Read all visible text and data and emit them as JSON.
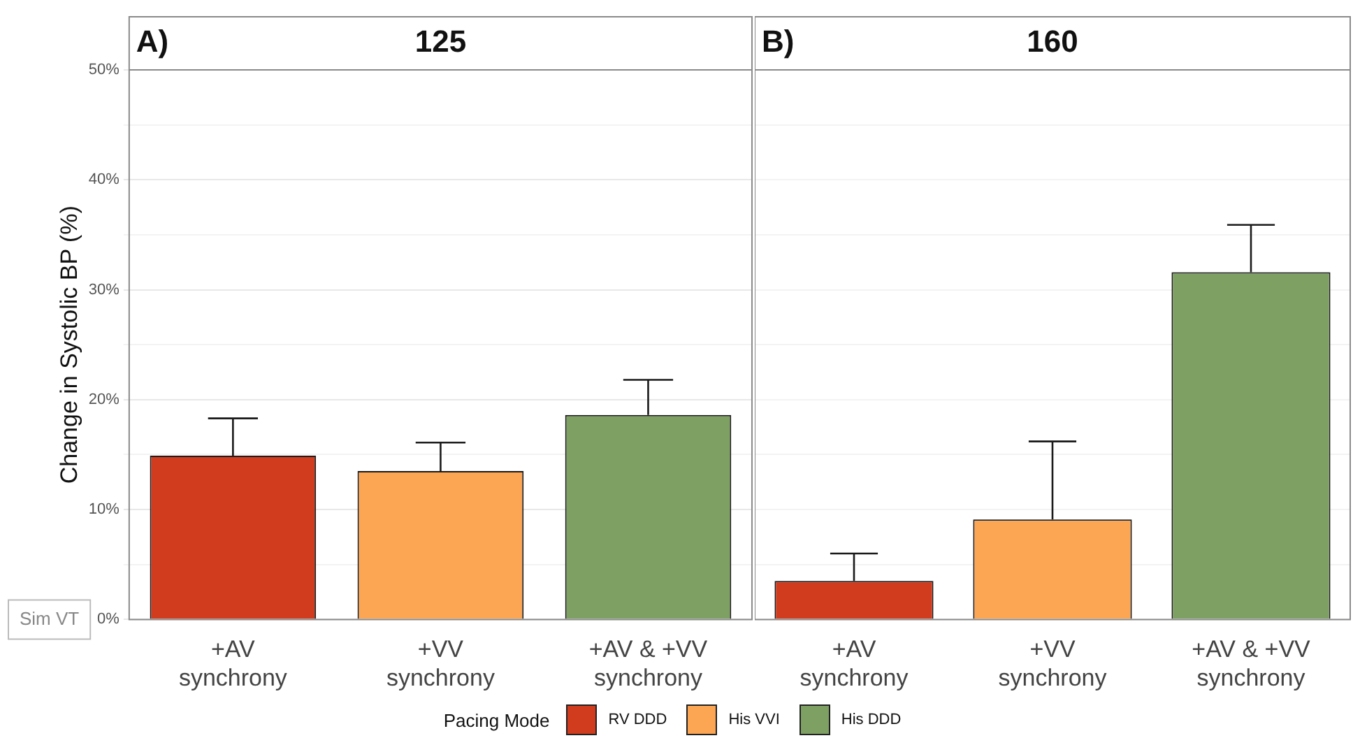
{
  "chart_data": [
    {
      "type": "bar",
      "title": "125",
      "ylabel": "Change in Systolic BP (%)",
      "legend_title": "Pacing Mode",
      "legend": "bottom",
      "grid": "y",
      "annotations": [
        "A)",
        "Sim VT"
      ],
      "categories": [
        "+AV\nsynchrony",
        "+VV\nsynchrony",
        "+AV & +VV\nsynchrony"
      ],
      "ylim": [
        0,
        50
      ],
      "yticks": [
        {
          "value": 0,
          "label": "0%"
        },
        {
          "value": 5,
          "label": null
        },
        {
          "value": 10,
          "label": "10%"
        },
        {
          "value": 15,
          "label": null
        },
        {
          "value": 20,
          "label": "20%"
        },
        {
          "value": 25,
          "label": null
        },
        {
          "value": 30,
          "label": "30%"
        },
        {
          "value": 35,
          "label": null
        },
        {
          "value": 40,
          "label": "40%"
        },
        {
          "value": 45,
          "label": null
        },
        {
          "value": 50,
          "label": "50%"
        }
      ],
      "series": [
        {
          "name": "RV DDD",
          "color": "#d03c1d",
          "values": [
            14.9,
            null,
            null
          ],
          "errors": [
            [
              14.9,
              18.3
            ],
            null,
            null
          ]
        },
        {
          "name": "His VVI",
          "color": "#fca654",
          "values": [
            null,
            13.5,
            null
          ],
          "errors": [
            null,
            [
              13.5,
              16.1
            ],
            null
          ]
        },
        {
          "name": "His DDD",
          "color": "#7ea163",
          "values": [
            null,
            null,
            18.6
          ],
          "errors": [
            null,
            null,
            [
              18.6,
              21.8
            ]
          ]
        }
      ]
    },
    {
      "type": "bar",
      "title": "160",
      "grid": "y",
      "tick_labels": "x",
      "annotations": [
        "B)"
      ],
      "categories": [
        "+AV\nsynchrony",
        "+VV\nsynchrony",
        "+AV & +VV\nsynchrony"
      ],
      "ylim": [
        0,
        50
      ],
      "yticks": [
        {
          "value": 0,
          "label": null
        },
        {
          "value": 5,
          "label": null
        },
        {
          "value": 10,
          "label": null
        },
        {
          "value": 15,
          "label": null
        },
        {
          "value": 20,
          "label": null
        },
        {
          "value": 25,
          "label": null
        },
        {
          "value": 30,
          "label": null
        },
        {
          "value": 35,
          "label": null
        },
        {
          "value": 40,
          "label": null
        },
        {
          "value": 45,
          "label": null
        },
        {
          "value": 50,
          "label": null
        }
      ],
      "series": [
        {
          "color": "#d03c1d",
          "values": [
            3.5,
            null,
            null
          ],
          "errors": [
            [
              3.5,
              6.0
            ],
            null,
            null
          ]
        },
        {
          "color": "#fca654",
          "values": [
            null,
            9.1,
            null
          ],
          "errors": [
            null,
            [
              9.1,
              16.2
            ],
            null
          ]
        },
        {
          "color": "#7ea163",
          "values": [
            null,
            null,
            31.6
          ],
          "errors": [
            null,
            null,
            [
              31.6,
              35.9
            ]
          ]
        }
      ]
    }
  ]
}
